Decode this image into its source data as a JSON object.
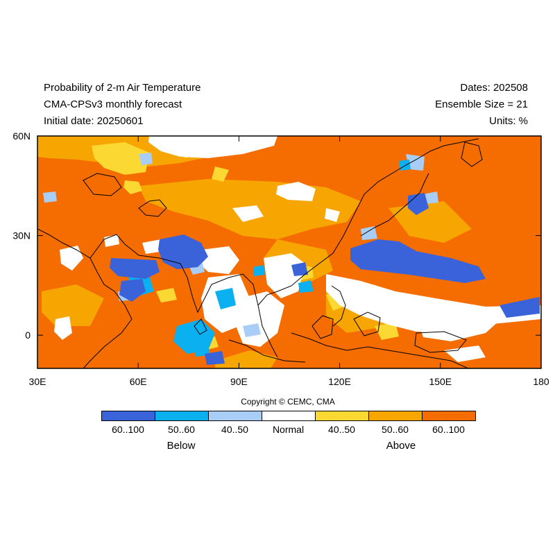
{
  "header": {
    "title": "Probability of 2-m Air Temperature",
    "subtitle": "CMA-CPSv3 monthly forecast",
    "initial_date": "Initial date: 20250601",
    "dates": "Dates: 202508",
    "ensemble": "Ensemble Size = 21",
    "units": "Units: %"
  },
  "map": {
    "lon_range": [
      30,
      180
    ],
    "lat_range": [
      -10,
      60
    ],
    "x_ticks": [
      "30E",
      "60E",
      "90E",
      "120E",
      "150E",
      "180"
    ],
    "y_ticks": [
      "60N",
      "30N",
      "0"
    ],
    "x_tick_values": [
      30,
      60,
      90,
      120,
      150,
      180
    ],
    "y_tick_values": [
      60,
      30,
      0
    ]
  },
  "copyright": "Copyright © CEMC, CMA",
  "legend": {
    "categories": [
      {
        "label": "60..100",
        "color": "#3b63d9"
      },
      {
        "label": "50..60",
        "color": "#0ab0f0"
      },
      {
        "label": "40..50",
        "color": "#a8cef8"
      },
      {
        "label": "Normal",
        "color": "#ffffff"
      },
      {
        "label": "40..50",
        "color": "#fbd932"
      },
      {
        "label": "50..60",
        "color": "#f7a500"
      },
      {
        "label": "60..100",
        "color": "#f56d00"
      }
    ],
    "below_label": "Below",
    "above_label": "Above"
  },
  "colors": {
    "above_high": "#f56d00",
    "above_mid": "#f7a500",
    "above_low": "#fbd932",
    "normal": "#ffffff",
    "below_low": "#a8cef8",
    "below_mid": "#0ab0f0",
    "below_high": "#3b63d9"
  }
}
